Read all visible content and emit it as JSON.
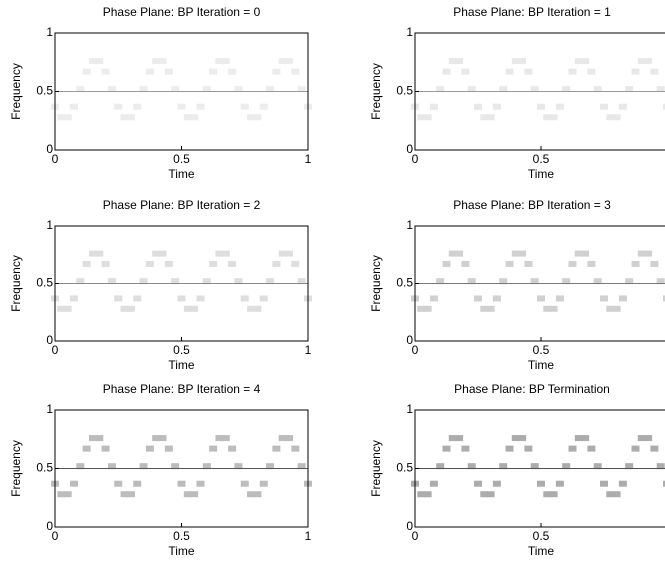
{
  "chart_data": [
    {
      "type": "scatter",
      "title": "Phase Plane: BP Iteration = 0",
      "xlabel": "Time",
      "ylabel": "Frequency",
      "xlim": [
        0,
        1
      ],
      "ylim": [
        0,
        1
      ],
      "xticks": [
        0,
        0.5,
        1
      ],
      "yticks": [
        0,
        0.5,
        1
      ],
      "reference_line": 0.5,
      "reference_color": "#9a9a9a",
      "series": [
        {
          "color": "#ececec",
          "x": [
            0,
            0.025,
            0.05,
            0.075,
            0.1,
            0.125,
            0.15,
            0.175,
            0.2,
            0.225,
            0.25,
            0.275,
            0.3,
            0.325,
            0.35,
            0.375,
            0.4,
            0.425,
            0.45,
            0.475,
            0.5,
            0.525,
            0.55,
            0.575,
            0.6,
            0.625,
            0.65,
            0.675,
            0.7,
            0.725,
            0.75,
            0.775,
            0.8,
            0.825,
            0.85,
            0.875,
            0.9,
            0.925,
            0.95,
            0.975,
            1
          ],
          "values": [
            0.37,
            0.28,
            0.28,
            0.37,
            0.52,
            0.67,
            0.76,
            0.76,
            0.67,
            0.52,
            0.37,
            0.28,
            0.28,
            0.37,
            0.52,
            0.67,
            0.76,
            0.76,
            0.67,
            0.52,
            0.37,
            0.28,
            0.28,
            0.37,
            0.52,
            0.67,
            0.76,
            0.76,
            0.67,
            0.52,
            0.37,
            0.28,
            0.28,
            0.37,
            0.52,
            0.67,
            0.76,
            0.76,
            0.67,
            0.52,
            0.37
          ]
        }
      ]
    },
    {
      "type": "scatter",
      "title": "Phase Plane: BP Iteration = 1",
      "xlabel": "Time",
      "ylabel": "Frequency",
      "xlim": [
        0,
        1
      ],
      "ylim": [
        0,
        1
      ],
      "xticks": [
        0,
        0.5
      ],
      "yticks": [
        0,
        0.5,
        1
      ],
      "reference_line": 0.5,
      "reference_color": "#9a9a9a",
      "series": [
        {
          "color": "#e8e8e8",
          "x": [
            0,
            0.025,
            0.05,
            0.075,
            0.1,
            0.125,
            0.15,
            0.175,
            0.2,
            0.225,
            0.25,
            0.275,
            0.3,
            0.325,
            0.35,
            0.375,
            0.4,
            0.425,
            0.45,
            0.475,
            0.5,
            0.525,
            0.55,
            0.575,
            0.6,
            0.625,
            0.65,
            0.675,
            0.7,
            0.725,
            0.75,
            0.775,
            0.8,
            0.825,
            0.85,
            0.875,
            0.9,
            0.925,
            0.95,
            0.975,
            1
          ],
          "values": [
            0.37,
            0.28,
            0.28,
            0.37,
            0.52,
            0.67,
            0.76,
            0.76,
            0.67,
            0.52,
            0.37,
            0.28,
            0.28,
            0.37,
            0.52,
            0.67,
            0.76,
            0.76,
            0.67,
            0.52,
            0.37,
            0.28,
            0.28,
            0.37,
            0.52,
            0.67,
            0.76,
            0.76,
            0.67,
            0.52,
            0.37,
            0.28,
            0.28,
            0.37,
            0.52,
            0.67,
            0.76,
            0.76,
            0.67,
            0.52,
            0.37
          ]
        }
      ]
    },
    {
      "type": "scatter",
      "title": "Phase Plane: BP Iteration = 2",
      "xlabel": "Time",
      "ylabel": "Frequency",
      "xlim": [
        0,
        1
      ],
      "ylim": [
        0,
        1
      ],
      "xticks": [
        0,
        0.5,
        1
      ],
      "yticks": [
        0,
        0.5,
        1
      ],
      "reference_line": 0.5,
      "reference_color": "#8a8a8a",
      "series": [
        {
          "color": "#dedede",
          "x": [
            0,
            0.025,
            0.05,
            0.075,
            0.1,
            0.125,
            0.15,
            0.175,
            0.2,
            0.225,
            0.25,
            0.275,
            0.3,
            0.325,
            0.35,
            0.375,
            0.4,
            0.425,
            0.45,
            0.475,
            0.5,
            0.525,
            0.55,
            0.575,
            0.6,
            0.625,
            0.65,
            0.675,
            0.7,
            0.725,
            0.75,
            0.775,
            0.8,
            0.825,
            0.85,
            0.875,
            0.9,
            0.925,
            0.95,
            0.975,
            1
          ],
          "values": [
            0.37,
            0.28,
            0.28,
            0.37,
            0.52,
            0.67,
            0.76,
            0.76,
            0.67,
            0.52,
            0.37,
            0.28,
            0.28,
            0.37,
            0.52,
            0.67,
            0.76,
            0.76,
            0.67,
            0.52,
            0.37,
            0.28,
            0.28,
            0.37,
            0.52,
            0.67,
            0.76,
            0.76,
            0.67,
            0.52,
            0.37,
            0.28,
            0.28,
            0.37,
            0.52,
            0.67,
            0.76,
            0.76,
            0.67,
            0.52,
            0.37
          ]
        }
      ]
    },
    {
      "type": "scatter",
      "title": "Phase Plane: BP Iteration = 3",
      "xlabel": "Time",
      "ylabel": "Frequency",
      "xlim": [
        0,
        1
      ],
      "ylim": [
        0,
        1
      ],
      "xticks": [
        0,
        0.5
      ],
      "yticks": [
        0,
        0.5,
        1
      ],
      "reference_line": 0.5,
      "reference_color": "#7a7a7a",
      "series": [
        {
          "color": "#d0d0d0",
          "x": [
            0,
            0.025,
            0.05,
            0.075,
            0.1,
            0.125,
            0.15,
            0.175,
            0.2,
            0.225,
            0.25,
            0.275,
            0.3,
            0.325,
            0.35,
            0.375,
            0.4,
            0.425,
            0.45,
            0.475,
            0.5,
            0.525,
            0.55,
            0.575,
            0.6,
            0.625,
            0.65,
            0.675,
            0.7,
            0.725,
            0.75,
            0.775,
            0.8,
            0.825,
            0.85,
            0.875,
            0.9,
            0.925,
            0.95,
            0.975,
            1
          ],
          "values": [
            0.37,
            0.28,
            0.28,
            0.37,
            0.52,
            0.67,
            0.76,
            0.76,
            0.67,
            0.52,
            0.37,
            0.28,
            0.28,
            0.37,
            0.52,
            0.67,
            0.76,
            0.76,
            0.67,
            0.52,
            0.37,
            0.28,
            0.28,
            0.37,
            0.52,
            0.67,
            0.76,
            0.76,
            0.67,
            0.52,
            0.37,
            0.28,
            0.28,
            0.37,
            0.52,
            0.67,
            0.76,
            0.76,
            0.67,
            0.52,
            0.37
          ]
        }
      ]
    },
    {
      "type": "scatter",
      "title": "Phase Plane: BP Iteration = 4",
      "xlabel": "Time",
      "ylabel": "Frequency",
      "xlim": [
        0,
        1
      ],
      "ylim": [
        0,
        1
      ],
      "xticks": [
        0,
        0.5,
        1
      ],
      "yticks": [
        0,
        0.5,
        1
      ],
      "reference_line": 0.5,
      "reference_color": "#555555",
      "series": [
        {
          "color": "#bcbcbc",
          "x": [
            0,
            0.025,
            0.05,
            0.075,
            0.1,
            0.125,
            0.15,
            0.175,
            0.2,
            0.225,
            0.25,
            0.275,
            0.3,
            0.325,
            0.35,
            0.375,
            0.4,
            0.425,
            0.45,
            0.475,
            0.5,
            0.525,
            0.55,
            0.575,
            0.6,
            0.625,
            0.65,
            0.675,
            0.7,
            0.725,
            0.75,
            0.775,
            0.8,
            0.825,
            0.85,
            0.875,
            0.9,
            0.925,
            0.95,
            0.975,
            1
          ],
          "values": [
            0.37,
            0.28,
            0.28,
            0.37,
            0.52,
            0.67,
            0.76,
            0.76,
            0.67,
            0.52,
            0.37,
            0.28,
            0.28,
            0.37,
            0.52,
            0.67,
            0.76,
            0.76,
            0.67,
            0.52,
            0.37,
            0.28,
            0.28,
            0.37,
            0.52,
            0.67,
            0.76,
            0.76,
            0.67,
            0.52,
            0.37,
            0.28,
            0.28,
            0.37,
            0.52,
            0.67,
            0.76,
            0.76,
            0.67,
            0.52,
            0.37
          ]
        }
      ]
    },
    {
      "type": "scatter",
      "title": "Phase Plane: BP Termination",
      "xlabel": "Time",
      "ylabel": "Frequency",
      "xlim": [
        0,
        1
      ],
      "ylim": [
        0,
        1
      ],
      "xticks": [
        0,
        0.5
      ],
      "yticks": [
        0,
        0.5,
        1
      ],
      "reference_line": 0.5,
      "reference_color": "#505050",
      "series": [
        {
          "color": "#acacac",
          "x": [
            0,
            0.025,
            0.05,
            0.075,
            0.1,
            0.125,
            0.15,
            0.175,
            0.2,
            0.225,
            0.25,
            0.275,
            0.3,
            0.325,
            0.35,
            0.375,
            0.4,
            0.425,
            0.45,
            0.475,
            0.5,
            0.525,
            0.55,
            0.575,
            0.6,
            0.625,
            0.65,
            0.675,
            0.7,
            0.725,
            0.75,
            0.775,
            0.8,
            0.825,
            0.85,
            0.875,
            0.9,
            0.925,
            0.95,
            0.975,
            1
          ],
          "values": [
            0.37,
            0.28,
            0.28,
            0.37,
            0.52,
            0.67,
            0.76,
            0.76,
            0.67,
            0.52,
            0.37,
            0.28,
            0.28,
            0.37,
            0.52,
            0.67,
            0.76,
            0.76,
            0.67,
            0.52,
            0.37,
            0.28,
            0.28,
            0.37,
            0.52,
            0.67,
            0.76,
            0.76,
            0.67,
            0.52,
            0.37,
            0.28,
            0.28,
            0.37,
            0.52,
            0.67,
            0.76,
            0.76,
            0.67,
            0.52,
            0.37
          ]
        }
      ]
    }
  ]
}
